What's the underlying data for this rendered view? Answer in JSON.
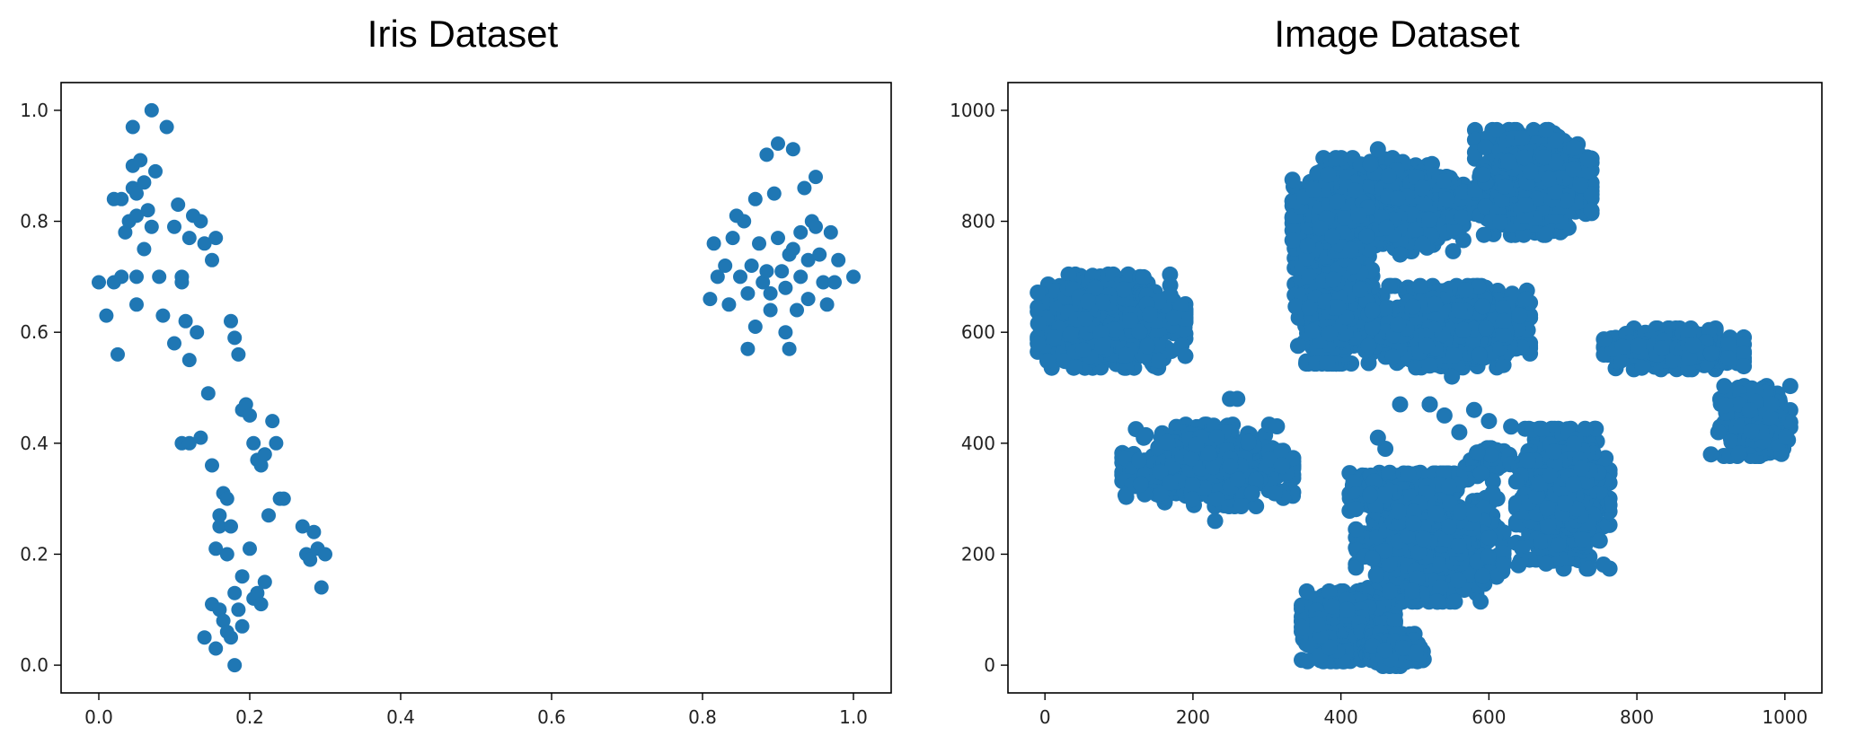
{
  "charts": [
    {
      "title": "Iris Dataset",
      "chart_data": {
        "type": "scatter",
        "title": "Iris Dataset",
        "xlabel": "",
        "ylabel": "",
        "xlim": [
          -0.05,
          1.05
        ],
        "ylim": [
          -0.05,
          1.05
        ],
        "xticks": [
          0.0,
          0.2,
          0.4,
          0.6,
          0.8,
          1.0
        ],
        "xtick_labels": [
          "0.0",
          "0.2",
          "0.4",
          "0.6",
          "0.8",
          "1.0"
        ],
        "yticks": [
          0.0,
          0.2,
          0.4,
          0.6,
          0.8,
          1.0
        ],
        "ytick_labels": [
          "0.0",
          "0.2",
          "0.4",
          "0.6",
          "0.8",
          "1.0"
        ],
        "grid": false,
        "color": "#1f77b4",
        "points": [
          [
            0.0,
            0.69
          ],
          [
            0.01,
            0.63
          ],
          [
            0.02,
            0.69
          ],
          [
            0.02,
            0.84
          ],
          [
            0.025,
            0.56
          ],
          [
            0.03,
            0.7
          ],
          [
            0.03,
            0.84
          ],
          [
            0.035,
            0.78
          ],
          [
            0.04,
            0.8
          ],
          [
            0.045,
            0.86
          ],
          [
            0.045,
            0.9
          ],
          [
            0.045,
            0.97
          ],
          [
            0.05,
            0.7
          ],
          [
            0.05,
            0.81
          ],
          [
            0.05,
            0.85
          ],
          [
            0.05,
            0.65
          ],
          [
            0.055,
            0.91
          ],
          [
            0.06,
            0.75
          ],
          [
            0.06,
            0.87
          ],
          [
            0.065,
            0.82
          ],
          [
            0.07,
            1.0
          ],
          [
            0.07,
            0.79
          ],
          [
            0.075,
            0.89
          ],
          [
            0.08,
            0.7
          ],
          [
            0.085,
            0.63
          ],
          [
            0.09,
            0.97
          ],
          [
            0.1,
            0.79
          ],
          [
            0.1,
            0.58
          ],
          [
            0.105,
            0.83
          ],
          [
            0.11,
            0.69
          ],
          [
            0.11,
            0.7
          ],
          [
            0.115,
            0.62
          ],
          [
            0.12,
            0.77
          ],
          [
            0.12,
            0.55
          ],
          [
            0.125,
            0.81
          ],
          [
            0.13,
            0.6
          ],
          [
            0.135,
            0.8
          ],
          [
            0.14,
            0.76
          ],
          [
            0.145,
            0.49
          ],
          [
            0.15,
            0.73
          ],
          [
            0.155,
            0.77
          ],
          [
            0.11,
            0.4
          ],
          [
            0.12,
            0.4
          ],
          [
            0.135,
            0.41
          ],
          [
            0.15,
            0.36
          ],
          [
            0.155,
            0.21
          ],
          [
            0.16,
            0.27
          ],
          [
            0.16,
            0.25
          ],
          [
            0.165,
            0.31
          ],
          [
            0.17,
            0.3
          ],
          [
            0.175,
            0.62
          ],
          [
            0.18,
            0.59
          ],
          [
            0.185,
            0.56
          ],
          [
            0.19,
            0.46
          ],
          [
            0.195,
            0.47
          ],
          [
            0.2,
            0.45
          ],
          [
            0.205,
            0.4
          ],
          [
            0.21,
            0.37
          ],
          [
            0.215,
            0.36
          ],
          [
            0.22,
            0.38
          ],
          [
            0.225,
            0.27
          ],
          [
            0.23,
            0.44
          ],
          [
            0.235,
            0.4
          ],
          [
            0.24,
            0.3
          ],
          [
            0.245,
            0.3
          ],
          [
            0.175,
            0.25
          ],
          [
            0.17,
            0.2
          ],
          [
            0.18,
            0.13
          ],
          [
            0.19,
            0.16
          ],
          [
            0.2,
            0.21
          ],
          [
            0.205,
            0.12
          ],
          [
            0.21,
            0.13
          ],
          [
            0.215,
            0.11
          ],
          [
            0.22,
            0.15
          ],
          [
            0.14,
            0.05
          ],
          [
            0.15,
            0.11
          ],
          [
            0.155,
            0.03
          ],
          [
            0.16,
            0.1
          ],
          [
            0.165,
            0.08
          ],
          [
            0.17,
            0.06
          ],
          [
            0.175,
            0.05
          ],
          [
            0.18,
            0.0
          ],
          [
            0.185,
            0.1
          ],
          [
            0.19,
            0.07
          ],
          [
            0.27,
            0.25
          ],
          [
            0.275,
            0.2
          ],
          [
            0.28,
            0.19
          ],
          [
            0.285,
            0.24
          ],
          [
            0.29,
            0.21
          ],
          [
            0.295,
            0.14
          ],
          [
            0.3,
            0.2
          ],
          [
            0.81,
            0.66
          ],
          [
            0.815,
            0.76
          ],
          [
            0.82,
            0.7
          ],
          [
            0.83,
            0.72
          ],
          [
            0.835,
            0.65
          ],
          [
            0.84,
            0.77
          ],
          [
            0.845,
            0.81
          ],
          [
            0.85,
            0.7
          ],
          [
            0.855,
            0.8
          ],
          [
            0.86,
            0.57
          ],
          [
            0.86,
            0.67
          ],
          [
            0.865,
            0.72
          ],
          [
            0.87,
            0.61
          ],
          [
            0.87,
            0.84
          ],
          [
            0.875,
            0.76
          ],
          [
            0.88,
            0.69
          ],
          [
            0.885,
            0.71
          ],
          [
            0.885,
            0.92
          ],
          [
            0.89,
            0.64
          ],
          [
            0.89,
            0.67
          ],
          [
            0.895,
            0.85
          ],
          [
            0.9,
            0.94
          ],
          [
            0.9,
            0.77
          ],
          [
            0.905,
            0.71
          ],
          [
            0.91,
            0.6
          ],
          [
            0.91,
            0.68
          ],
          [
            0.915,
            0.74
          ],
          [
            0.915,
            0.57
          ],
          [
            0.92,
            0.93
          ],
          [
            0.92,
            0.75
          ],
          [
            0.925,
            0.64
          ],
          [
            0.93,
            0.78
          ],
          [
            0.93,
            0.7
          ],
          [
            0.935,
            0.86
          ],
          [
            0.94,
            0.73
          ],
          [
            0.94,
            0.66
          ],
          [
            0.945,
            0.8
          ],
          [
            0.95,
            0.88
          ],
          [
            0.95,
            0.79
          ],
          [
            0.955,
            0.74
          ],
          [
            0.96,
            0.69
          ],
          [
            0.965,
            0.65
          ],
          [
            0.97,
            0.78
          ],
          [
            0.975,
            0.69
          ],
          [
            0.98,
            0.73
          ],
          [
            1.0,
            0.7
          ]
        ]
      }
    },
    {
      "title": "Image Dataset",
      "chart_data": {
        "type": "scatter",
        "title": "Image Dataset",
        "xlabel": "",
        "ylabel": "",
        "xlim": [
          -50,
          1050
        ],
        "ylim": [
          -50,
          1050
        ],
        "xticks": [
          0,
          200,
          400,
          600,
          800,
          1000
        ],
        "xtick_labels": [
          "0",
          "200",
          "400",
          "600",
          "800",
          "1000"
        ],
        "yticks": [
          0,
          200,
          400,
          600,
          800,
          1000
        ],
        "ytick_labels": [
          "0",
          "200",
          "400",
          "600",
          "800",
          "1000"
        ],
        "grid": false,
        "color": "#1f77b4",
        "clusters": [
          {
            "center": [
              90,
              620
            ],
            "radius": [
              95,
              80
            ],
            "count": 900
          },
          {
            "center": [
              480,
              310
            ],
            "radius": [
              65,
              35
            ],
            "count": 450
          },
          {
            "center": [
              600,
              370
            ],
            "radius": [
              30,
              20
            ],
            "count": 140
          },
          {
            "center": [
              520,
              230
            ],
            "radius": [
              95,
              110
            ],
            "count": 900
          },
          {
            "center": [
              410,
              70
            ],
            "radius": [
              60,
              60
            ],
            "count": 700
          },
          {
            "center": [
              470,
              30
            ],
            "radius": [
              40,
              30
            ],
            "count": 300
          },
          {
            "center": [
              700,
              300
            ],
            "radius": [
              60,
              120
            ],
            "count": 800
          },
          {
            "center": [
              220,
              360
            ],
            "radius": [
              110,
              70
            ],
            "count": 750
          },
          {
            "center": [
              540,
              610
            ],
            "radius": [
              110,
              70
            ],
            "count": 900
          },
          {
            "center": [
              390,
              680
            ],
            "radius": [
              50,
              130
            ],
            "count": 800
          },
          {
            "center": [
              450,
              830
            ],
            "radius": [
              110,
              80
            ],
            "count": 900
          },
          {
            "center": [
              660,
              870
            ],
            "radius": [
              75,
              90
            ],
            "count": 800
          },
          {
            "center": [
              850,
              570
            ],
            "radius": [
              90,
              35
            ],
            "count": 450
          },
          {
            "center": [
              960,
              440
            ],
            "radius": [
              45,
              60
            ],
            "count": 450
          }
        ],
        "outliers": [
          [
            520,
            470
          ],
          [
            540,
            450
          ],
          [
            560,
            420
          ],
          [
            580,
            460
          ],
          [
            600,
            440
          ],
          [
            460,
            390
          ],
          [
            450,
            410
          ],
          [
            630,
            430
          ],
          [
            640,
            180
          ],
          [
            600,
            230
          ],
          [
            680,
            250
          ],
          [
            520,
            470
          ],
          [
            480,
            470
          ],
          [
            900,
            380
          ],
          [
            910,
            420
          ],
          [
            480,
            740
          ],
          [
            320,
            360
          ],
          [
            280,
            310
          ],
          [
            230,
            260
          ],
          [
            560,
            640
          ],
          [
            620,
            620
          ],
          [
            650,
            660
          ],
          [
            550,
            520
          ],
          [
            520,
            540
          ],
          [
            450,
            930
          ],
          [
            510,
            860
          ],
          [
            260,
            480
          ],
          [
            250,
            480
          ]
        ]
      }
    }
  ]
}
